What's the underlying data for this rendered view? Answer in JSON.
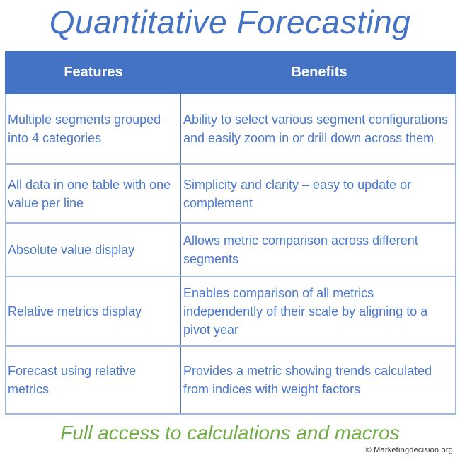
{
  "title": "Quantitative Forecasting",
  "table": {
    "headers": {
      "features": "Features",
      "benefits": "Benefits"
    },
    "rows": [
      {
        "feature": "Multiple segments grouped into 4 categories",
        "benefit": "Ability to select various segment configurations and easily zoom in or drill down across them"
      },
      {
        "feature": "All data in one table with one value per line",
        "benefit": "Simplicity and clarity – easy to update or complement"
      },
      {
        "feature": "Absolute value display",
        "benefit": "Allows metric comparison across different segments"
      },
      {
        "feature": "Relative metrics display",
        "benefit": "Enables comparison of all metrics independently of their scale by aligning to a pivot year"
      },
      {
        "feature": "Forecast using relative metrics",
        "benefit": "Provides a metric showing trends calculated from indices with weight factors"
      }
    ]
  },
  "footer": {
    "tagline": "Full access to calculations and macros",
    "copyright": "© Marketingdecision.org"
  },
  "colors": {
    "header_bg": "#4472C4",
    "header_text": "#FFFFFF",
    "body_text": "#4A77CD",
    "border_light": "#9FB6DA",
    "column_divider": "#4472C4",
    "title_blue": "#4472C4",
    "tagline_green": "#70AD47"
  }
}
